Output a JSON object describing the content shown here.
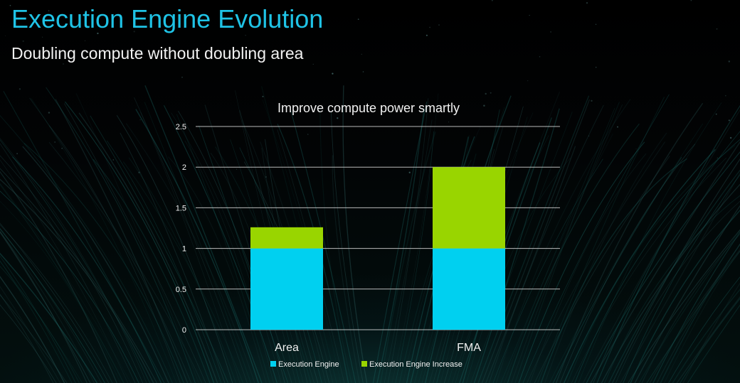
{
  "slide": {
    "title": "Execution Engine Evolution",
    "subtitle": "Doubling compute without doubling area"
  },
  "colors": {
    "title": "#1fc3e6",
    "execution_engine": "#00d0f0",
    "execution_engine_increase": "#99d500",
    "grid": "#d9d9d9",
    "text": "#f2f2f2"
  },
  "chart_data": {
    "type": "bar",
    "stacked": true,
    "title": "Improve compute power smartly",
    "categories": [
      "Area",
      "FMA"
    ],
    "series": [
      {
        "name": "Execution Engine",
        "values": [
          1,
          1
        ]
      },
      {
        "name": "Execution Engine Increase",
        "values": [
          0.26,
          1
        ]
      }
    ],
    "ylim": [
      0,
      2.5
    ],
    "yticks": [
      "0",
      "0.5",
      "1",
      "1.5",
      "2",
      "2.5"
    ],
    "ytick_values": [
      0,
      0.5,
      1,
      1.5,
      2,
      2.5
    ],
    "xlabel": "",
    "ylabel": "",
    "grid": true,
    "legend_position": "bottom"
  }
}
